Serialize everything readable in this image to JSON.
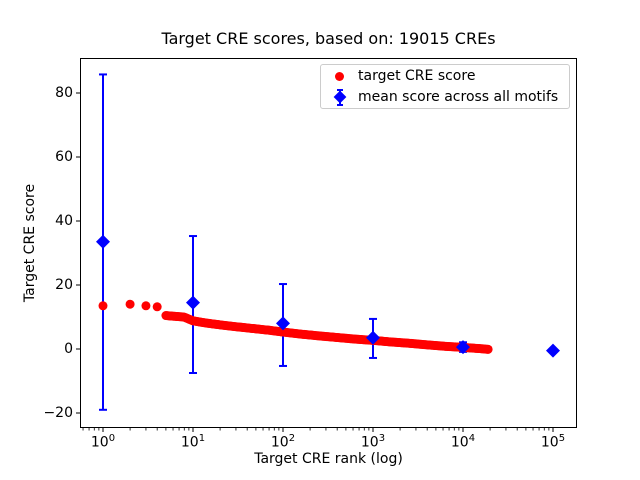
{
  "chart_data": {
    "type": "scatter",
    "title": "Target CRE scores, based on: 19015 CREs",
    "xlabel": "Target CRE rank (log)",
    "ylabel": "Target CRE score",
    "x_scale": "log10",
    "x_tick_base": "10",
    "x_tick_exponents": [
      0,
      1,
      2,
      3,
      4,
      5
    ],
    "x_tick_labels": [
      "10^0",
      "10^1",
      "10^2",
      "10^3",
      "10^4",
      "10^5"
    ],
    "y_tick_values": [
      -20,
      0,
      20,
      40,
      60,
      80
    ],
    "y_tick_labels": [
      "−20",
      "0",
      "20",
      "40",
      "60",
      "80"
    ],
    "xlim_log10": [
      -0.256,
      5.267
    ],
    "ylim": [
      -24.4,
      91.0
    ],
    "grid": false,
    "legend_position": "upper right",
    "series": [
      {
        "name": "target CRE score",
        "color": "#ff0000",
        "marker": "circle",
        "n_points_total": 19015,
        "points_note": "19015 points at ranks 1..19015; ranks 1-4 are distinct dots, ranks 5+ form a dense descending band sampled by the log10 anchors below",
        "leading_points": [
          [
            1,
            13.5
          ],
          [
            2,
            14.0
          ],
          [
            3,
            13.5
          ],
          [
            4,
            13.2
          ]
        ],
        "curve_log10_anchors": [
          [
            0.699,
            10.45
          ],
          [
            0.78,
            10.25
          ],
          [
            0.9,
            10.0
          ],
          [
            1.0,
            8.8
          ],
          [
            1.15,
            8.1
          ],
          [
            1.3,
            7.55
          ],
          [
            1.5,
            6.9
          ],
          [
            1.7,
            6.3
          ],
          [
            1.85,
            5.85
          ],
          [
            2.0,
            5.3
          ],
          [
            2.2,
            4.65
          ],
          [
            2.4,
            4.1
          ],
          [
            2.6,
            3.6
          ],
          [
            2.8,
            3.1
          ],
          [
            3.0,
            2.7
          ],
          [
            3.2,
            2.2
          ],
          [
            3.4,
            1.8
          ],
          [
            3.6,
            1.3
          ],
          [
            3.8,
            0.85
          ],
          [
            4.0,
            0.5
          ],
          [
            4.1,
            0.3
          ],
          [
            4.2,
            0.1
          ],
          [
            4.279,
            -0.1
          ]
        ]
      },
      {
        "name": "mean score across all motifs",
        "color": "#0000ff",
        "marker": "diamond",
        "points": [
          {
            "rank": 1,
            "mean": 33.5,
            "err_lo": -19.0,
            "err_hi": 85.8
          },
          {
            "rank": 10,
            "mean": 14.5,
            "err_lo": -7.5,
            "err_hi": 35.3
          },
          {
            "rank": 100,
            "mean": 8.0,
            "err_lo": -5.3,
            "err_hi": 20.3
          },
          {
            "rank": 1000,
            "mean": 3.5,
            "err_lo": -2.8,
            "err_hi": 9.4
          },
          {
            "rank": 10000,
            "mean": 0.6,
            "err_lo": -0.9,
            "err_hi": 2.1
          },
          {
            "rank": 100000,
            "mean": -0.5,
            "err_lo": -0.5,
            "err_hi": -0.5
          }
        ]
      }
    ]
  },
  "colors": {
    "target": "#ff0000",
    "mean": "#0000ff",
    "axis": "#000000",
    "legend_border": "#cccccc",
    "background": "#ffffff"
  }
}
